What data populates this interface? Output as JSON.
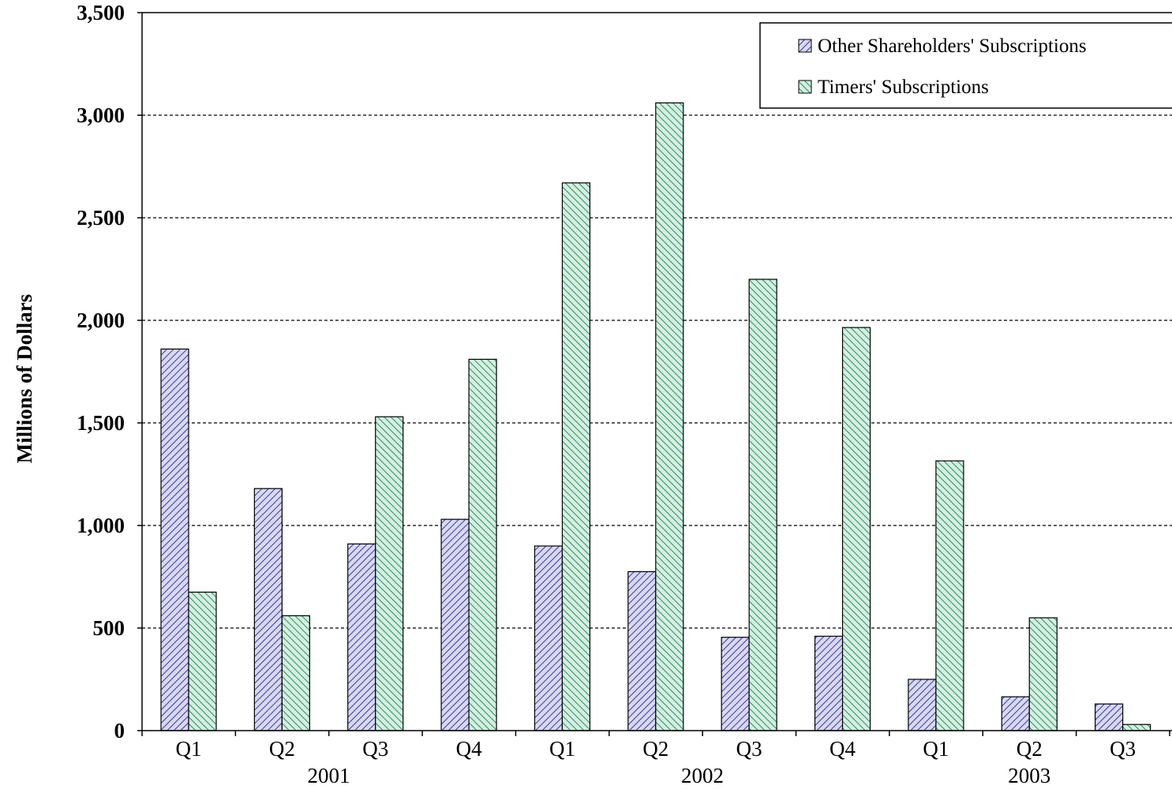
{
  "chart_data": {
    "type": "bar",
    "title": "",
    "xlabel": "",
    "ylabel": "Millions of Dollars",
    "ylim": [
      0,
      3500
    ],
    "yticks": [
      0,
      500,
      1000,
      1500,
      2000,
      2500,
      3000,
      3500
    ],
    "ytick_labels": [
      "0",
      "500",
      "1,000",
      "1,500",
      "2,000",
      "2,500",
      "3,000",
      "3,500"
    ],
    "grid": "horizontal dashed",
    "legend_position": "top-right",
    "categories": [
      "Q1",
      "Q2",
      "Q3",
      "Q4",
      "Q1",
      "Q2",
      "Q3",
      "Q4",
      "Q1",
      "Q2",
      "Q3"
    ],
    "groups": [
      {
        "label": "2001",
        "span": [
          0,
          3
        ]
      },
      {
        "label": "2002",
        "span": [
          4,
          7
        ]
      },
      {
        "label": "2003",
        "span": [
          8,
          10
        ]
      }
    ],
    "series": [
      {
        "name": "Other Shareholders' Subscriptions",
        "pattern": "diagonal-back",
        "color": "#5a5aa8",
        "fill": "#d8d8f0",
        "values": [
          1860,
          1180,
          910,
          1030,
          900,
          775,
          455,
          460,
          250,
          165,
          130
        ]
      },
      {
        "name": "Timers' Subscriptions",
        "pattern": "diagonal-forward",
        "color": "#2f8a5c",
        "fill": "#d4efe2",
        "values": [
          675,
          560,
          1530,
          1810,
          2670,
          3060,
          2200,
          1965,
          1315,
          550,
          30
        ]
      }
    ]
  }
}
